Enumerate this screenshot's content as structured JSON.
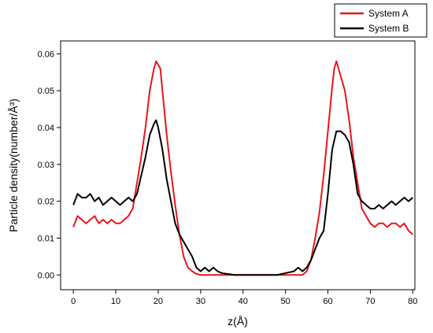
{
  "chart_data": {
    "type": "line",
    "title": "",
    "xlabel": "z(Å)",
    "ylabel": "Particle density(number/Å³)",
    "xlim": [
      -3,
      80.5
    ],
    "ylim": [
      -0.004,
      0.0635
    ],
    "x_ticks": [
      0,
      10,
      20,
      30,
      40,
      50,
      60,
      70,
      80
    ],
    "x_tick_labels": [
      "0",
      "10",
      "20",
      "30",
      "40",
      "50",
      "60",
      "70",
      "80"
    ],
    "y_ticks": [
      0.0,
      0.01,
      0.02,
      0.03,
      0.04,
      0.05,
      0.06
    ],
    "y_tick_labels": [
      "0.00",
      "0.01",
      "0.02",
      "0.03",
      "0.04",
      "0.05",
      "0.06"
    ],
    "grid": false,
    "legend": "top-right",
    "series": [
      {
        "name": "System A",
        "color": "#e8141c",
        "x": [
          0,
          1,
          2,
          3,
          4,
          5,
          6,
          7,
          8,
          9,
          10,
          11,
          12,
          13,
          14,
          15,
          16,
          17,
          18,
          19,
          19.5,
          20,
          20.5,
          21,
          22,
          23,
          24,
          25,
          26,
          27,
          28,
          29,
          30,
          35,
          40,
          45,
          50,
          54,
          55,
          56,
          57,
          58,
          59,
          60,
          61,
          61.5,
          62,
          62.5,
          63,
          64,
          65,
          66,
          67,
          68,
          69,
          70,
          71,
          72,
          73,
          74,
          75,
          76,
          77,
          78,
          79,
          80
        ],
        "y": [
          0.013,
          0.016,
          0.015,
          0.014,
          0.015,
          0.016,
          0.014,
          0.015,
          0.014,
          0.015,
          0.014,
          0.014,
          0.015,
          0.016,
          0.018,
          0.025,
          0.032,
          0.04,
          0.05,
          0.056,
          0.058,
          0.057,
          0.056,
          0.05,
          0.038,
          0.028,
          0.019,
          0.011,
          0.005,
          0.002,
          0.001,
          0.0003,
          0.0,
          0.0,
          0.0,
          0.0,
          0.0,
          0.0,
          0.001,
          0.004,
          0.01,
          0.017,
          0.027,
          0.039,
          0.051,
          0.056,
          0.058,
          0.056,
          0.054,
          0.05,
          0.042,
          0.032,
          0.025,
          0.018,
          0.016,
          0.014,
          0.013,
          0.014,
          0.014,
          0.013,
          0.014,
          0.014,
          0.013,
          0.014,
          0.012,
          0.011
        ]
      },
      {
        "name": "System B",
        "color": "#000000",
        "x": [
          0,
          1,
          2,
          3,
          4,
          5,
          6,
          7,
          8,
          9,
          10,
          11,
          12,
          13,
          14,
          15,
          16,
          17,
          18,
          19,
          19.5,
          20,
          21,
          22,
          23,
          24,
          25,
          26,
          27,
          28,
          29,
          30,
          31,
          32,
          33,
          34,
          35,
          38,
          40,
          45,
          48,
          50,
          52,
          53,
          54,
          55,
          56,
          57,
          58,
          59,
          60,
          61,
          62,
          63,
          64,
          65,
          66,
          67,
          68,
          69,
          70,
          71,
          72,
          73,
          74,
          75,
          76,
          77,
          78,
          79,
          80
        ],
        "y": [
          0.019,
          0.022,
          0.021,
          0.021,
          0.022,
          0.02,
          0.021,
          0.019,
          0.02,
          0.021,
          0.02,
          0.019,
          0.02,
          0.021,
          0.02,
          0.022,
          0.027,
          0.032,
          0.038,
          0.041,
          0.042,
          0.04,
          0.034,
          0.026,
          0.02,
          0.014,
          0.011,
          0.009,
          0.007,
          0.005,
          0.002,
          0.001,
          0.002,
          0.001,
          0.002,
          0.001,
          0.0005,
          0.0,
          0.0,
          0.0,
          0.0,
          0.0005,
          0.001,
          0.002,
          0.001,
          0.002,
          0.004,
          0.007,
          0.01,
          0.012,
          0.022,
          0.034,
          0.039,
          0.039,
          0.038,
          0.036,
          0.03,
          0.022,
          0.02,
          0.019,
          0.018,
          0.018,
          0.019,
          0.018,
          0.019,
          0.02,
          0.019,
          0.02,
          0.021,
          0.02,
          0.021
        ]
      }
    ]
  }
}
